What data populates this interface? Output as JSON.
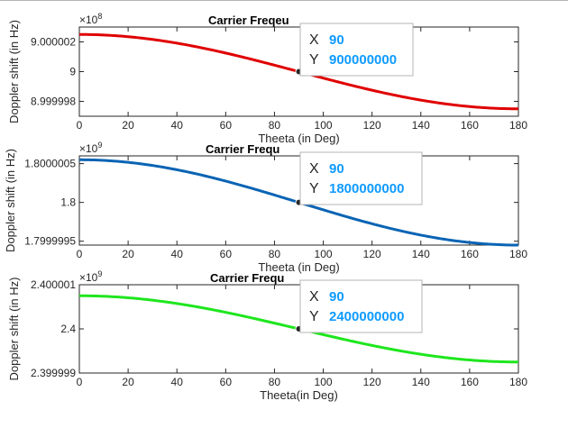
{
  "figure": {
    "background": "#ffffff"
  },
  "chart_data": [
    {
      "type": "line",
      "title": "Carrier Freqeu",
      "xlabel": "Theeta (in Deg)",
      "ylabel": "Doppler shift (in Hz)",
      "xlim": [
        0,
        180
      ],
      "ylim": [
        899999700,
        900000300
      ],
      "xticks": [
        "0",
        "20",
        "40",
        "60",
        "80",
        "100",
        "120",
        "140",
        "160",
        "180"
      ],
      "yticks": [
        {
          "value": 900000200,
          "label": "9.000002"
        },
        {
          "value": 900000000,
          "label": "9"
        },
        {
          "value": 899999800,
          "label": "8.999998"
        }
      ],
      "exponent": {
        "base": "×10",
        "power": "8"
      },
      "series": [
        {
          "color": "#e00000",
          "x": [
            0,
            180
          ],
          "y": [
            900000250,
            899999750
          ],
          "shape": "cosine"
        }
      ],
      "datatip": {
        "x_key": "X",
        "x_value": "90",
        "y_key": "Y",
        "y_value": "900000000",
        "x": 90,
        "y": 900000000
      },
      "grid": false,
      "box": true
    },
    {
      "type": "line",
      "title": "Carrier Frequ",
      "xlabel": "Theeta (in Deg)",
      "ylabel": "Doppler shift (in Hz)",
      "xlim": [
        0,
        180
      ],
      "ylim": [
        1799999450,
        1800000600
      ],
      "xticks": [
        "0",
        "20",
        "40",
        "60",
        "80",
        "100",
        "120",
        "140",
        "160",
        "180"
      ],
      "yticks": [
        {
          "value": 1800000500,
          "label": "1.8000005"
        },
        {
          "value": 1800000000,
          "label": "1.8"
        },
        {
          "value": 1799999500,
          "label": "1.7999995"
        }
      ],
      "exponent": {
        "base": "×10",
        "power": "9"
      },
      "series": [
        {
          "color": "#0a64b4",
          "x": [
            0,
            180
          ],
          "y": [
            1800000550,
            1799999450
          ],
          "shape": "cosine"
        }
      ],
      "datatip": {
        "x_key": "X",
        "x_value": "90",
        "y_key": "Y",
        "y_value": "1800000000",
        "x": 90,
        "y": 1800000000
      },
      "grid": false,
      "box": true
    },
    {
      "type": "line",
      "title": "Carrier Frequ",
      "xlabel": "Theeta(in Deg)",
      "ylabel": "Doppler shift (in Hz)",
      "xlim": [
        0,
        180
      ],
      "ylim": [
        2399999000,
        2400001000
      ],
      "xticks": [
        "0",
        "20",
        "40",
        "60",
        "80",
        "100",
        "120",
        "140",
        "160",
        "180"
      ],
      "yticks": [
        {
          "value": 2400001000,
          "label": "2.400001"
        },
        {
          "value": 2400000000,
          "label": "2.4"
        },
        {
          "value": 2399999000,
          "label": "2.399999"
        }
      ],
      "exponent": {
        "base": "×10",
        "power": "9"
      },
      "series": [
        {
          "color": "#1ee61e",
          "x": [
            0,
            180
          ],
          "y": [
            2400000750,
            2399999250
          ],
          "shape": "cosine"
        }
      ],
      "datatip": {
        "x_key": "X",
        "x_value": "90",
        "y_key": "Y",
        "y_value": "2400000000",
        "x": 90,
        "y": 2400000000
      },
      "grid": false,
      "box": true
    }
  ]
}
